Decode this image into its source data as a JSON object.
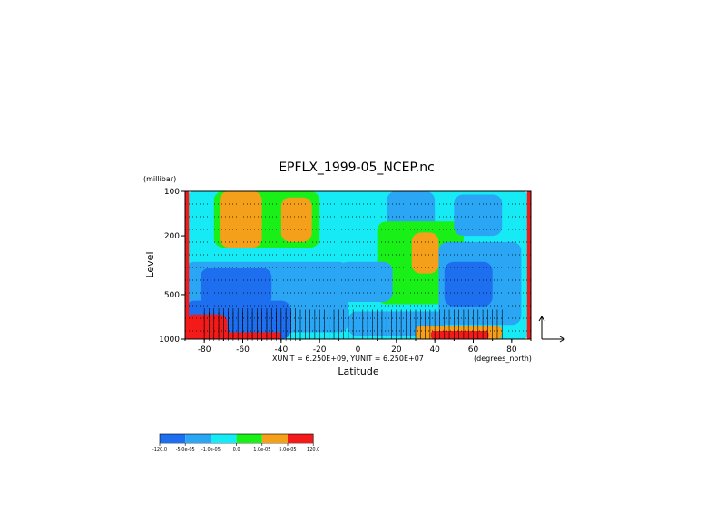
{
  "chart_data": {
    "type": "heatmap",
    "title": "EPFLX_1999-05_NCEP.nc",
    "xlabel": "Latitude",
    "ylabel": "Level",
    "x_units": "(degrees_north)",
    "y_units": "(millibar)",
    "xlim": [
      -90,
      90
    ],
    "ylim": [
      1000,
      100
    ],
    "y_scale": "log",
    "x_ticks": [
      -80,
      -60,
      -40,
      -20,
      0,
      20,
      40,
      60,
      80
    ],
    "y_ticks": [
      100,
      200,
      500,
      1000
    ],
    "x_tick_labels": [
      "-80",
      "-60",
      "-40",
      "-20",
      "0",
      "20",
      "40",
      "60",
      "80"
    ],
    "y_tick_labels": [
      "100",
      "200",
      "500",
      "1000"
    ],
    "vector_scale_note": "XUNIT = 6.250E+09, YUNIT = 6.250E+07",
    "grid": "dotted horizontal lines",
    "colorbar": {
      "levels": [
        -120.0,
        -5e-05,
        -1e-05,
        0.0,
        1e-05,
        5e-05,
        120.0
      ],
      "labels": [
        "-120.0",
        "-5.0e-05",
        "-1.0e-05",
        "0.0",
        "1.0e-05",
        "5.0e-05",
        "120.0"
      ],
      "colors": [
        "#1e6ff0",
        "#2aa6f5",
        "#16ebf5",
        "#18f018",
        "#f5a01a",
        "#f51a1a"
      ]
    },
    "regions": [
      {
        "lat": [
          -90,
          90
        ],
        "p": [
          100,
          1000
        ],
        "class": 2
      },
      {
        "lat": [
          -90,
          -5
        ],
        "p": [
          300,
          900
        ],
        "class": 1
      },
      {
        "lat": [
          -90,
          -35
        ],
        "p": [
          550,
          1000
        ],
        "class": 0
      },
      {
        "lat": [
          -82,
          -45
        ],
        "p": [
          330,
          600
        ],
        "class": 0
      },
      {
        "lat": [
          -75,
          -20
        ],
        "p": [
          100,
          240
        ],
        "class": 3
      },
      {
        "lat": [
          -72,
          -50
        ],
        "p": [
          100,
          240
        ],
        "class": 4
      },
      {
        "lat": [
          -40,
          -24
        ],
        "p": [
          110,
          220
        ],
        "class": 4
      },
      {
        "lat": [
          15,
          40
        ],
        "p": [
          100,
          260
        ],
        "class": 1
      },
      {
        "lat": [
          10,
          55
        ],
        "p": [
          160,
          580
        ],
        "class": 3
      },
      {
        "lat": [
          28,
          42
        ],
        "p": [
          190,
          360
        ],
        "class": 4
      },
      {
        "lat": [
          42,
          85
        ],
        "p": [
          220,
          800
        ],
        "class": 1
      },
      {
        "lat": [
          45,
          70
        ],
        "p": [
          300,
          600
        ],
        "class": 0
      },
      {
        "lat": [
          50,
          75
        ],
        "p": [
          105,
          200
        ],
        "class": 1
      },
      {
        "lat": [
          -10,
          18
        ],
        "p": [
          300,
          560
        ],
        "class": 1
      },
      {
        "lat": [
          -5,
          45
        ],
        "p": [
          650,
          950
        ],
        "class": 1
      },
      {
        "lat": [
          30,
          75
        ],
        "p": [
          820,
          1000
        ],
        "class": 4
      },
      {
        "lat": [
          38,
          68
        ],
        "p": [
          880,
          1000
        ],
        "class": 5
      },
      {
        "lat": [
          -90,
          -40
        ],
        "p": [
          900,
          1000
        ],
        "class": 5
      },
      {
        "lat": [
          -90,
          -68
        ],
        "p": [
          680,
          1000
        ],
        "class": 5
      },
      {
        "lat": [
          -90,
          -88
        ],
        "p": [
          100,
          1000
        ],
        "class": 5
      },
      {
        "lat": [
          88,
          90
        ],
        "p": [
          100,
          1000
        ],
        "class": 5
      }
    ],
    "vector_band": {
      "lat": [
        -80,
        75
      ],
      "p": [
        650,
        1000
      ]
    }
  }
}
